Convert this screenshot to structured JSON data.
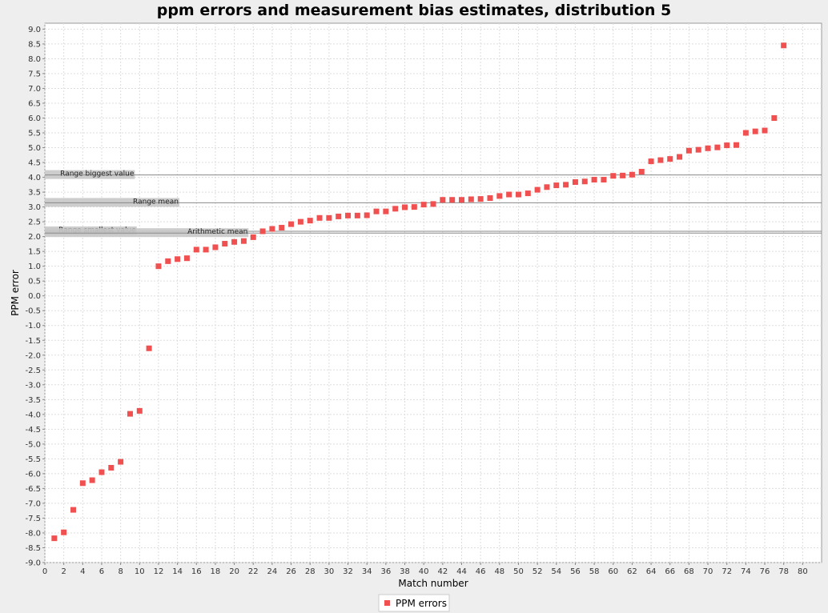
{
  "chart_data": {
    "type": "scatter",
    "title": "ppm errors and measurement bias estimates, distribution 5",
    "xlabel": "Match number",
    "ylabel": "PPM error",
    "xlim": [
      0,
      82
    ],
    "ylim": [
      -9.0,
      9.2
    ],
    "x_ticks": [
      0,
      2,
      4,
      6,
      8,
      10,
      12,
      14,
      16,
      18,
      20,
      22,
      24,
      26,
      28,
      30,
      32,
      34,
      36,
      38,
      40,
      42,
      44,
      46,
      48,
      50,
      52,
      54,
      56,
      58,
      60,
      62,
      64,
      66,
      68,
      70,
      72,
      74,
      76,
      78,
      80
    ],
    "y_ticks": [
      -9.0,
      -8.5,
      -8.0,
      -7.5,
      -7.0,
      -6.5,
      -6.0,
      -5.5,
      -5.0,
      -4.5,
      -4.0,
      -3.5,
      -3.0,
      -2.5,
      -2.0,
      -1.5,
      -1.0,
      -0.5,
      0.0,
      0.5,
      1.0,
      1.5,
      2.0,
      2.5,
      3.0,
      3.5,
      4.0,
      4.5,
      5.0,
      5.5,
      6.0,
      6.5,
      7.0,
      7.5,
      8.0,
      8.5,
      9.0
    ],
    "grid": true,
    "legend_position": "bottom-center",
    "series": [
      {
        "name": "PPM errors",
        "color": "#f05050",
        "marker": "square",
        "x": [
          1,
          2,
          3,
          4,
          5,
          6,
          7,
          8,
          9,
          10,
          11,
          12,
          13,
          14,
          15,
          16,
          17,
          18,
          19,
          20,
          21,
          22,
          23,
          24,
          25,
          26,
          27,
          28,
          29,
          30,
          31,
          32,
          33,
          34,
          35,
          36,
          37,
          38,
          39,
          40,
          41,
          42,
          43,
          44,
          45,
          46,
          47,
          48,
          49,
          50,
          51,
          52,
          53,
          54,
          55,
          56,
          57,
          58,
          59,
          60,
          61,
          62,
          63,
          64,
          65,
          66,
          67,
          68,
          69,
          70,
          71,
          72,
          73,
          74,
          75,
          76,
          77,
          78
        ],
        "y": [
          -8.18,
          -7.98,
          -7.22,
          -6.32,
          -6.22,
          -5.95,
          -5.8,
          -5.6,
          -3.98,
          -3.88,
          -1.77,
          1.0,
          1.17,
          1.24,
          1.27,
          1.56,
          1.56,
          1.64,
          1.76,
          1.82,
          1.85,
          1.98,
          2.18,
          2.26,
          2.3,
          2.42,
          2.5,
          2.54,
          2.63,
          2.63,
          2.68,
          2.71,
          2.71,
          2.72,
          2.85,
          2.85,
          2.94,
          2.99,
          3.0,
          3.08,
          3.1,
          3.24,
          3.24,
          3.24,
          3.26,
          3.27,
          3.3,
          3.37,
          3.42,
          3.42,
          3.46,
          3.58,
          3.67,
          3.73,
          3.75,
          3.84,
          3.86,
          3.92,
          3.92,
          4.05,
          4.06,
          4.09,
          4.19,
          4.54,
          4.58,
          4.62,
          4.69,
          4.9,
          4.93,
          4.98,
          5.01,
          5.08,
          5.09,
          5.5,
          5.55,
          5.58,
          6.0,
          8.45
        ]
      }
    ],
    "annotations": [
      {
        "label": "Range biggest value",
        "value": 4.08,
        "color": "#c8c8c8",
        "band_end": 9.5
      },
      {
        "label": "Range mean",
        "value": 3.14,
        "color": "#c8c8c8",
        "band_end": 14.2
      },
      {
        "label": "Range smallest value",
        "value": 2.18,
        "color": "#c8c8c8",
        "band_end": 9.7
      },
      {
        "label": "Arithmetic mean",
        "value": 2.12,
        "color": "#c8c8c8",
        "band_end": 21.5
      }
    ]
  }
}
